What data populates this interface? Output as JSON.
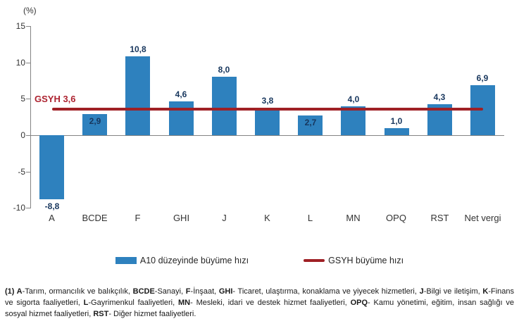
{
  "chart_data": {
    "type": "bar",
    "unit_label": "(%)",
    "categories": [
      "A",
      "BCDE",
      "F",
      "GHI",
      "J",
      "K",
      "L",
      "MN",
      "OPQ",
      "RST",
      "Net vergi"
    ],
    "series": [
      {
        "name": "A10 düzeyinde büyüme hızı",
        "type": "bar",
        "color": "#2E81BE",
        "values": [
          -8.8,
          2.9,
          10.8,
          4.6,
          8.0,
          3.8,
          2.7,
          4.0,
          1.0,
          4.3,
          6.9
        ],
        "labels": [
          "-8,8",
          "2,9",
          "10,8",
          "4,6",
          "8,0",
          "3,8",
          "2,7",
          "4,0",
          "1,0",
          "4,3",
          "6,9"
        ],
        "label_pos": [
          "below",
          "inside",
          "above",
          "above",
          "above",
          "above",
          "inside",
          "above",
          "above",
          "above",
          "above"
        ]
      },
      {
        "name": "GSYH büyüme hızı",
        "type": "line",
        "color": "#9F2025",
        "value": 3.6,
        "annotation": "GSYH 3,6",
        "annotation_color": "#AD2330"
      }
    ],
    "ylim": [
      -10,
      15
    ],
    "yticks": [
      15,
      10,
      5,
      0,
      -5,
      -10
    ],
    "grid": false,
    "legend_position": "bottom"
  },
  "footnote": {
    "segments": [
      {
        "t": "(1) A",
        "b": true
      },
      {
        "t": "-Tarım, ormancılık ve balıkçılık, ",
        "b": false
      },
      {
        "t": "BCDE",
        "b": true
      },
      {
        "t": "-Sanayi, ",
        "b": false
      },
      {
        "t": "F",
        "b": true
      },
      {
        "t": "-İnşaat, ",
        "b": false
      },
      {
        "t": "GHI",
        "b": true
      },
      {
        "t": "- Ticaret, ulaştırma, konaklama ve yiyecek hizmetleri, ",
        "b": false
      },
      {
        "t": "J",
        "b": true
      },
      {
        "t": "-Bilgi ve iletişim, ",
        "b": false
      },
      {
        "t": "K",
        "b": true
      },
      {
        "t": "-Finans ve sigorta faaliyetleri, ",
        "b": false
      },
      {
        "t": "L",
        "b": true
      },
      {
        "t": "-Gayrimenkul faaliyetleri, ",
        "b": false
      },
      {
        "t": "MN",
        "b": true
      },
      {
        "t": "- Mesleki, idari ve destek hizmet faaliyetleri, ",
        "b": false
      },
      {
        "t": "OPQ",
        "b": true
      },
      {
        "t": "- Kamu yönetimi, eğitim, insan sağlığı ve sosyal hizmet faaliyetleri, ",
        "b": false
      },
      {
        "t": "RST",
        "b": true
      },
      {
        "t": "- Diğer hizmet faaliyetleri.",
        "b": false
      }
    ]
  }
}
